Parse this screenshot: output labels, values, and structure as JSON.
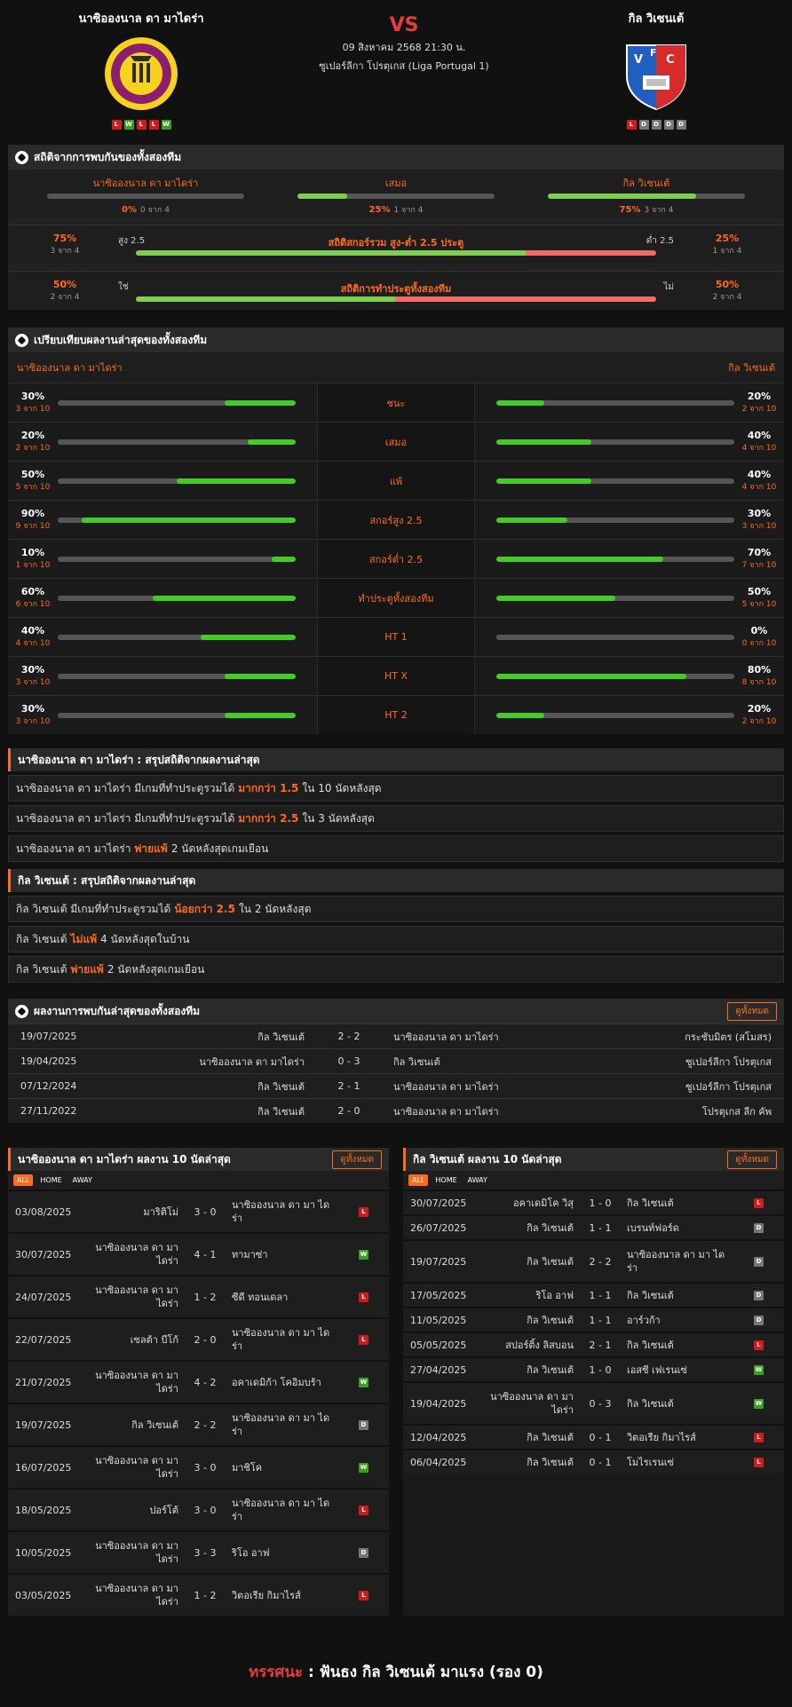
{
  "header": {
    "home_team": "นาซิอองนาล ดา มาไดร่า",
    "away_team": "กิล วิเซนเต้",
    "vs": "VS",
    "date": "09 สิงหาคม 2568 21:30 น.",
    "league": "ซูเปอร์ลีกา โปรตุเกส (Liga Portugal 1)",
    "home_form": [
      "L",
      "W",
      "L",
      "L",
      "W"
    ],
    "away_form": [
      "L",
      "D",
      "D",
      "D",
      "D"
    ]
  },
  "h2h_stats": {
    "title": "สถิติจากการพบกันของทั้งสองทีม",
    "cols": [
      {
        "label": "นาซิอองนาล ดา มาไดร่า",
        "pct": "0%",
        "count": "0 จาก 4",
        "value": 0
      },
      {
        "label": "เสมอ",
        "pct": "25%",
        "count": "1 จาก 4",
        "value": 25
      },
      {
        "label": "กิล วิเซนเต้",
        "pct": "75%",
        "count": "3 จาก 4",
        "value": 75
      }
    ],
    "ou": {
      "title": "สถิติสกอร์รวม สูง-ต่ำ 2.5 ประตู",
      "left_pct": "75%",
      "left_count": "3 จาก 4",
      "right_pct": "25%",
      "right_count": "1 จาก 4",
      "left_label": "สูง 2.5",
      "right_label": "ต่ำ 2.5",
      "value": 75
    },
    "btts": {
      "title": "สถิติการทำประตูทั้งสองทีม",
      "left_pct": "50%",
      "left_count": "2 จาก 4",
      "right_pct": "50%",
      "right_count": "2 จาก 4",
      "left_label": "ใช่",
      "right_label": "ไม่",
      "value": 50
    }
  },
  "comparison": {
    "title": "เปรียบเทียบผลงานล่าสุดของทั้งสองทีม",
    "home": "นาซิอองนาล ดา มาไดร่า",
    "away": "กิล วิเซนเต้",
    "rows": [
      {
        "label": "ชนะ",
        "hp": "30%",
        "hs": "3 จาก 10",
        "hv": 30,
        "ap": "20%",
        "as": "2 จาก 10",
        "av": 20
      },
      {
        "label": "เสมอ",
        "hp": "20%",
        "hs": "2 จาก 10",
        "hv": 20,
        "ap": "40%",
        "as": "4 จาก 10",
        "av": 40
      },
      {
        "label": "แพ้",
        "hp": "50%",
        "hs": "5 จาก 10",
        "hv": 50,
        "ap": "40%",
        "as": "4 จาก 10",
        "av": 40
      },
      {
        "label": "สกอร์สูง 2.5",
        "hp": "90%",
        "hs": "9 จาก 10",
        "hv": 90,
        "ap": "30%",
        "as": "3 จาก 10",
        "av": 30
      },
      {
        "label": "สกอร์ต่ำ 2.5",
        "hp": "10%",
        "hs": "1 จาก 10",
        "hv": 10,
        "ap": "70%",
        "as": "7 จาก 10",
        "av": 70
      },
      {
        "label": "ทำประตูทั้งสองทีม",
        "hp": "60%",
        "hs": "6 จาก 10",
        "hv": 60,
        "ap": "50%",
        "as": "5 จาก 10",
        "av": 50
      },
      {
        "label": "HT 1",
        "hp": "40%",
        "hs": "4 จาก 10",
        "hv": 40,
        "ap": "0%",
        "as": "0 จาก 10",
        "av": 0
      },
      {
        "label": "HT X",
        "hp": "30%",
        "hs": "3 จาก 10",
        "hv": 30,
        "ap": "80%",
        "as": "8 จาก 10",
        "av": 80
      },
      {
        "label": "HT 2",
        "hp": "30%",
        "hs": "3 จาก 10",
        "hv": 30,
        "ap": "20%",
        "as": "2 จาก 10",
        "av": 20
      }
    ]
  },
  "home_summary": {
    "title": "นาซิอองนาล ดา มาไดร่า : สรุปสถิติจากผลงานล่าสุด",
    "lines": [
      {
        "pre": "นาซิอองนาล ดา มาไดร่า  มีเกมที่ทำประตูรวมได้",
        "hi": "มากกว่า  1.5",
        "post": "ใน 10 นัดหลังสุด"
      },
      {
        "pre": "นาซิอองนาล ดา มาไดร่า  มีเกมที่ทำประตูรวมได้",
        "hi": "มากกว่า  2.5",
        "post": "ใน 3 นัดหลังสุด"
      },
      {
        "pre": "นาซิอองนาล ดา มาไดร่า",
        "hi": "พ่ายแพ้",
        "post": "2  นัดหลังสุดเกมเยือน"
      }
    ]
  },
  "away_summary": {
    "title": "กิล วิเซนเต้ : สรุปสถิติจากผลงานล่าสุด",
    "lines": [
      {
        "pre": "กิล วิเซนเต้  มีเกมที่ทำประตูรวมได้",
        "hi": "น้อยกว่า  2.5",
        "post": "ใน 2 นัดหลังสุด"
      },
      {
        "pre": "กิล วิเซนเต้",
        "hi": "ไม่แพ้",
        "post": "4  นัดหลังสุดในบ้าน"
      },
      {
        "pre": "กิล วิเซนเต้",
        "hi": "พ่ายแพ้",
        "post": "2  นัดหลังสุดเกมเยือน"
      }
    ]
  },
  "h2h_matches": {
    "title": "ผลงานการพบกันล่าสุดของทั้งสองทีม",
    "btn": "ดูทั้งหมด",
    "rows": [
      {
        "date": "19/07/2025",
        "home": "กิล วิเซนเต้",
        "score": "2 - 2",
        "away": "นาซิอองนาล ดา มาไดร่า",
        "comp": "กระชับมิตร (สโมสร)"
      },
      {
        "date": "19/04/2025",
        "home": "นาซิอองนาล ดา มาไดร่า",
        "score": "0 - 3",
        "away": "กิล วิเซนเต้",
        "comp": "ซูเปอร์ลีกา โปรตุเกส"
      },
      {
        "date": "07/12/2024",
        "home": "กิล วิเซนเต้",
        "score": "2 - 1",
        "away": "นาซิอองนาล ดา มาไดร่า",
        "comp": "ซูเปอร์ลีกา โปรตุเกส"
      },
      {
        "date": "27/11/2022",
        "home": "กิล วิเซนเต้",
        "score": "2 - 0",
        "away": "นาซิอองนาล ดา มาไดร่า",
        "comp": "โปรตุเกส ลีก คัพ"
      }
    ]
  },
  "home_last10": {
    "title": "นาซิอองนาล ดา มาไดร่า ผลงาน 10 นัดล่าสุด",
    "btn": "ดูทั้งหมด",
    "tabs": [
      "ALL",
      "HOME",
      "AWAY"
    ],
    "rows": [
      {
        "date": "03/08/2025",
        "home": "มาริติโม่",
        "score": "3 - 0",
        "away": "นาซิอองนาล ดา มา ไดร่า",
        "res": "L"
      },
      {
        "date": "30/07/2025",
        "home": "นาซิอองนาล ดา มา ไดร่า",
        "score": "4 - 1",
        "away": "ทามาซ่า",
        "res": "W"
      },
      {
        "date": "24/07/2025",
        "home": "นาซิอองนาล ดา มา ไดร่า",
        "score": "1 - 2",
        "away": "ซีดี ทอนเดลา",
        "res": "L"
      },
      {
        "date": "22/07/2025",
        "home": "เซลต้า บีโก้",
        "score": "2 - 0",
        "away": "นาซิอองนาล ดา มา ไดร่า",
        "res": "L"
      },
      {
        "date": "21/07/2025",
        "home": "นาซิอองนาล ดา มา ไดร่า",
        "score": "4 - 2",
        "away": "อคาเดมิก้า โคอิมบร้า",
        "res": "W"
      },
      {
        "date": "19/07/2025",
        "home": "กิล วิเซนเต้",
        "score": "2 - 2",
        "away": "นาซิอองนาล ดา มา ไดร่า",
        "res": "D"
      },
      {
        "date": "16/07/2025",
        "home": "นาซิอองนาล ดา มา ไดร่า",
        "score": "3 - 0",
        "away": "มาชิโค",
        "res": "W"
      },
      {
        "date": "18/05/2025",
        "home": "ปอร์โต้",
        "score": "3 - 0",
        "away": "นาซิอองนาล ดา มา ไดร่า",
        "res": "L"
      },
      {
        "date": "10/05/2025",
        "home": "นาซิอองนาล ดา มา ไดร่า",
        "score": "3 - 3",
        "away": "ริโอ อาฟ",
        "res": "D"
      },
      {
        "date": "03/05/2025",
        "home": "นาซิอองนาล ดา มา ไดร่า",
        "score": "1 - 2",
        "away": "วิตอเรีย กิมาไรส์",
        "res": "L"
      }
    ]
  },
  "away_last10": {
    "title": "กิล วิเซนเต้ ผลงาน 10 นัดล่าสุด",
    "btn": "ดูทั้งหมด",
    "tabs": [
      "ALL",
      "HOME",
      "AWAY"
    ],
    "rows": [
      {
        "date": "30/07/2025",
        "home": "อคาเดมิโค วิสุ",
        "score": "1 - 0",
        "away": "กิล วิเซนเต้",
        "res": "L"
      },
      {
        "date": "26/07/2025",
        "home": "กิล วิเซนเต้",
        "score": "1 - 1",
        "away": "เบรนท์ฟอร์ด",
        "res": "D"
      },
      {
        "date": "19/07/2025",
        "home": "กิล วิเซนเต้",
        "score": "2 - 2",
        "away": "นาซิอองนาล ดา มา ไดร่า",
        "res": "D"
      },
      {
        "date": "17/05/2025",
        "home": "ริโอ อาฟ",
        "score": "1 - 1",
        "away": "กิล วิเซนเต้",
        "res": "D"
      },
      {
        "date": "11/05/2025",
        "home": "กิล วิเซนเต้",
        "score": "1 - 1",
        "away": "อาร์วก้า",
        "res": "D"
      },
      {
        "date": "05/05/2025",
        "home": "สปอร์ติ้ง ลิสบอน",
        "score": "2 - 1",
        "away": "กิล วิเซนเต้",
        "res": "L"
      },
      {
        "date": "27/04/2025",
        "home": "กิล วิเซนเต้",
        "score": "1 - 0",
        "away": "เอสซี เฟเรนเซ่",
        "res": "W"
      },
      {
        "date": "19/04/2025",
        "home": "นาซิอองนาล ดา มา ไดร่า",
        "score": "0 - 3",
        "away": "กิล วิเซนเต้",
        "res": "W"
      },
      {
        "date": "12/04/2025",
        "home": "กิล วิเซนเต้",
        "score": "0 - 1",
        "away": "วิตอเรีย กิมาไรส์",
        "res": "L"
      },
      {
        "date": "06/04/2025",
        "home": "กิล วิเซนเต้",
        "score": "0 - 1",
        "away": "โมไรเรนเซ่",
        "res": "L"
      }
    ]
  },
  "footer": {
    "label": "ทรรศนะ",
    "sep": ":",
    "text": "ฟันธง กิล วิเซนเต้ มาแรง (รอง 0)"
  },
  "colors": {
    "accent": "#ff6b1c",
    "win": "#3aa01d",
    "loss": "#d11a1a",
    "draw": "#777777",
    "bar_green": "#44cc22",
    "bar_red": "#f06a6a"
  }
}
